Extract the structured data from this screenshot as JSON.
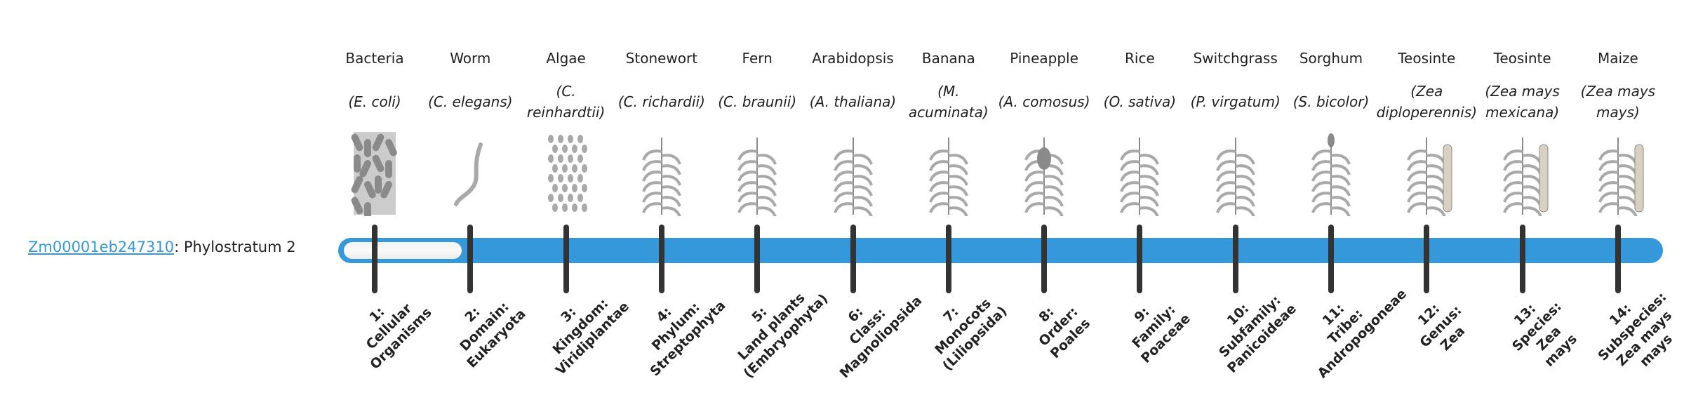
{
  "gene": {
    "id": "Zm00001eb247310",
    "suffix": ": Phylostratum 2"
  },
  "progress": {
    "phylostratum": 2,
    "total": 14,
    "bar_color": "#3498db",
    "tick_color": "#333333"
  },
  "organisms": [
    {
      "name": "Bacteria",
      "species": "(E. coli)",
      "icon": "bacteria-icon"
    },
    {
      "name": "Worm",
      "species": "(C. elegans)",
      "icon": "worm-icon"
    },
    {
      "name": "Algae",
      "species": "(C. reinhardtii)",
      "icon": "algae-icon"
    },
    {
      "name": "Stonewort",
      "species": "(C. richardii)",
      "icon": "stonewort-icon"
    },
    {
      "name": "Fern",
      "species": "(C. braunii)",
      "icon": "fern-icon"
    },
    {
      "name": "Arabidopsis",
      "species": "(A. thaliana)",
      "icon": "arabidopsis-icon"
    },
    {
      "name": "Banana",
      "species": "(M. acuminata)",
      "icon": "banana-icon"
    },
    {
      "name": "Pineapple",
      "species": "(A. comosus)",
      "icon": "pineapple-icon"
    },
    {
      "name": "Rice",
      "species": "(O. sativa)",
      "icon": "rice-icon"
    },
    {
      "name": "Switchgrass",
      "species": "(P. virgatum)",
      "icon": "switchgrass-icon"
    },
    {
      "name": "Sorghum",
      "species": "(S. bicolor)",
      "icon": "sorghum-icon"
    },
    {
      "name": "Teosinte",
      "species": "(Zea diploperennis)",
      "icon": "teosinte-icon"
    },
    {
      "name": "Teosinte",
      "species": "(Zea mays mexicana)",
      "icon": "teosinte-icon"
    },
    {
      "name": "Maize",
      "species": "(Zea mays mays)",
      "icon": "maize-icon"
    }
  ],
  "strata": [
    [
      "1:",
      "Cellular",
      "Organisms"
    ],
    [
      "2:",
      "Domain:",
      "Eukaryota"
    ],
    [
      "3:",
      "Kingdom:",
      "Viridiplantae"
    ],
    [
      "4:",
      "Phylum:",
      "Streptophyta"
    ],
    [
      "5:",
      "Land plants",
      "(Embryophyta)"
    ],
    [
      "6:",
      "Class:",
      "Magnoliopsida"
    ],
    [
      "7:",
      "Monocots",
      "(Liliopsida)"
    ],
    [
      "8:",
      "Order:",
      "Poales"
    ],
    [
      "9:",
      "Family:",
      "Poaceae"
    ],
    [
      "10:",
      "Subfamily:",
      "Panicoideae"
    ],
    [
      "11:",
      "Tribe:",
      "Andropogoneae"
    ],
    [
      "12:",
      "Genus:",
      "Zea"
    ],
    [
      "13:",
      "Species:",
      "Zea",
      "mays"
    ],
    [
      "14:",
      "Subspecies:",
      "Zea mays",
      "mays"
    ]
  ]
}
